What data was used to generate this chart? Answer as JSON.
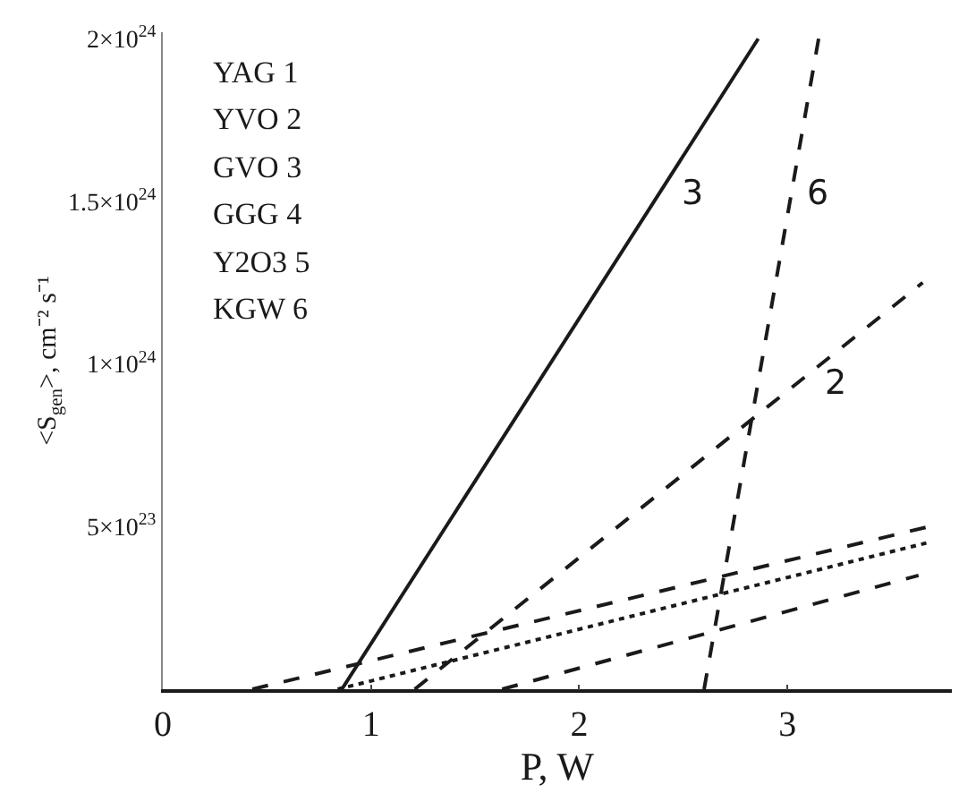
{
  "chart_data": {
    "type": "line",
    "xlabel": "P, W",
    "ylabel": "<S$_{gen}$>, cm⁻² s⁻¹",
    "xlim": [
      0,
      3.79
    ],
    "ylim": [
      0,
      2.02e+24
    ],
    "xticks": [
      0,
      1,
      2,
      3
    ],
    "yticks": [
      {
        "value": 5e+23,
        "label": "5×10$^{23}$"
      },
      {
        "value": 1e+24,
        "label": "1×10$^{24}$"
      },
      {
        "value": 1.5e+24,
        "label": "1.5×10$^{24}$"
      },
      {
        "value": 2e+24,
        "label": "2×10$^{24}$"
      }
    ],
    "annotations": [
      "YAG 1",
      "YVO 2",
      "GVO 3",
      "GGG 4",
      "Y2O3 5",
      "KGW 6"
    ],
    "series": [
      {
        "name": "3",
        "color": "#1a1a1a",
        "line_style": "solid",
        "x": [
          0.86,
          2.86
        ],
        "values": [
          0,
          2e+24
        ]
      },
      {
        "name": "2",
        "color": "#1a1a1a",
        "line_style": "dashed",
        "x": [
          1.21,
          3.65
        ],
        "values": [
          0,
          1.25e+24
        ]
      },
      {
        "name": "6",
        "color": "#1a1a1a",
        "line_style": "dashed",
        "x": [
          2.6,
          3.15
        ],
        "values": [
          0,
          2e+24
        ]
      },
      {
        "color": "#1a1a1a",
        "line_style": "dashed",
        "x": [
          0.43,
          3.68
        ],
        "values": [
          0,
          5e+23
        ]
      },
      {
        "color": "#1a1a1a",
        "line_style": "dotted",
        "x": [
          0.84,
          3.67
        ],
        "values": [
          0,
          4.5e+23
        ]
      },
      {
        "color": "#1a1a1a",
        "line_style": "dashed",
        "x": [
          1.63,
          3.63
        ],
        "values": [
          0,
          3.5e+23
        ]
      }
    ]
  }
}
